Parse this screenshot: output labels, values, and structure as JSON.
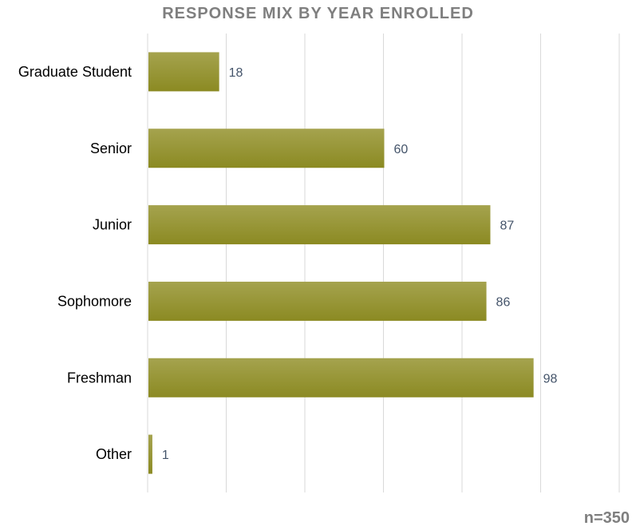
{
  "chart_data": {
    "type": "bar",
    "orientation": "horizontal",
    "title": "RESPONSE MIX BY YEAR ENROLLED",
    "categories": [
      "Graduate Student",
      "Senior",
      "Junior",
      "Sophomore",
      "Freshman",
      "Other"
    ],
    "values": [
      18,
      60,
      87,
      86,
      98,
      1
    ],
    "xlim": [
      0,
      120
    ],
    "grid": true,
    "data_labels": true,
    "bar_color": "#8b8a22",
    "bar_color_light": "#a5a34e",
    "label_color": "#44546a",
    "note": "n=350"
  }
}
